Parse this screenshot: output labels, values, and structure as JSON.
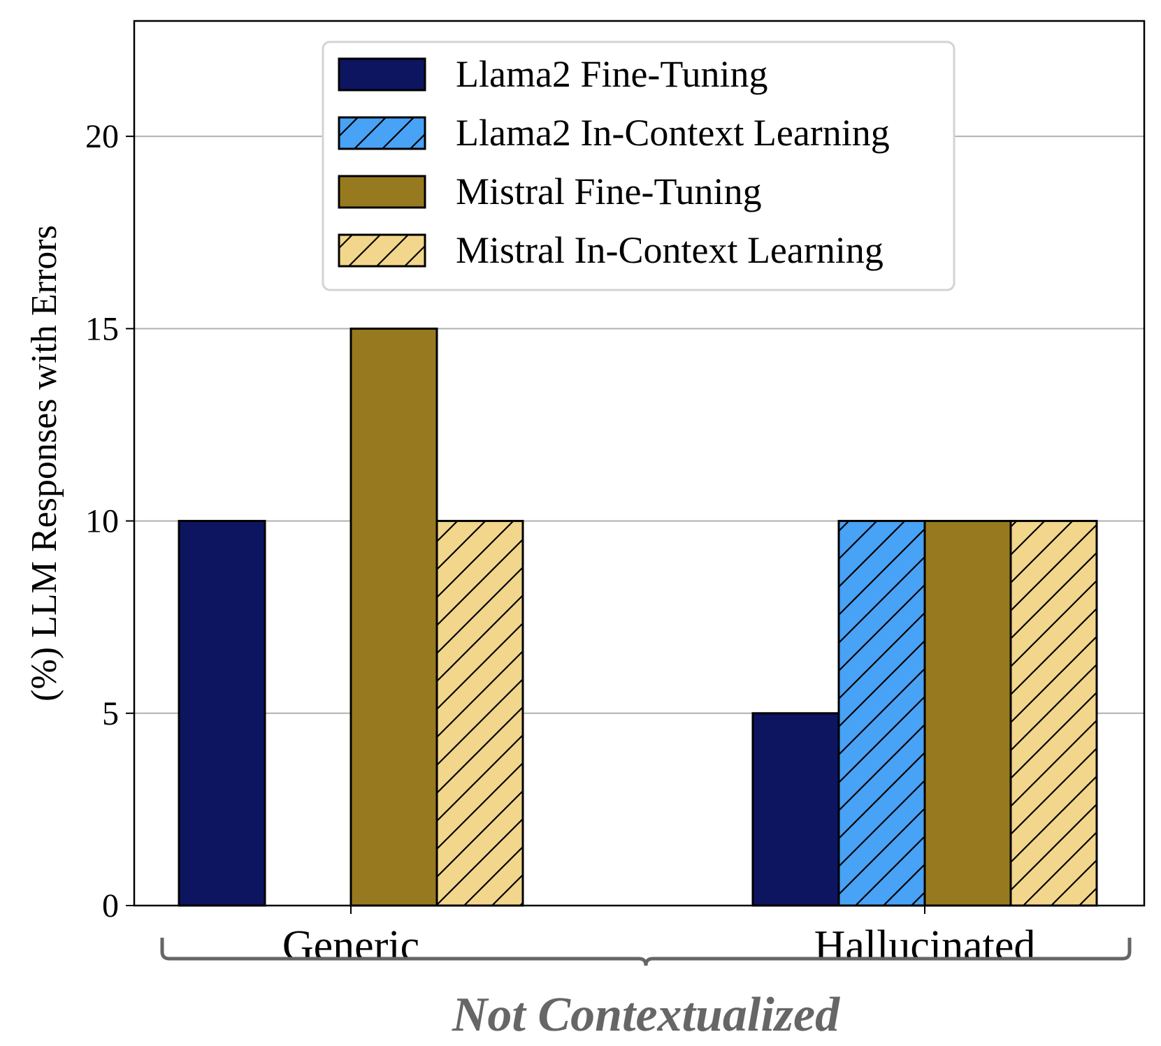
{
  "chart_data": {
    "type": "bar",
    "categories": [
      "Generic",
      "Hallucinated"
    ],
    "series": [
      {
        "name": "Llama2 Fine-Tuning",
        "values": [
          10,
          5
        ],
        "color": "#0d1560",
        "hatch": false
      },
      {
        "name": "Llama2 In-Context Learning",
        "values": [
          0,
          10
        ],
        "color": "#48a2f5",
        "hatch": true
      },
      {
        "name": "Mistral Fine-Tuning",
        "values": [
          15,
          10
        ],
        "color": "#977a1f",
        "hatch": false
      },
      {
        "name": "Mistral In-Context Learning",
        "values": [
          10,
          10
        ],
        "color": "#f2d68c",
        "hatch": true
      }
    ],
    "ylabel": "(%) LLM Responses with Errors",
    "xlabel": "",
    "ylim": [
      0,
      23
    ],
    "yticks": [
      0,
      5,
      10,
      15,
      20
    ],
    "grid": "y",
    "legend": "top-center",
    "group_label": "Not Contextualized"
  }
}
